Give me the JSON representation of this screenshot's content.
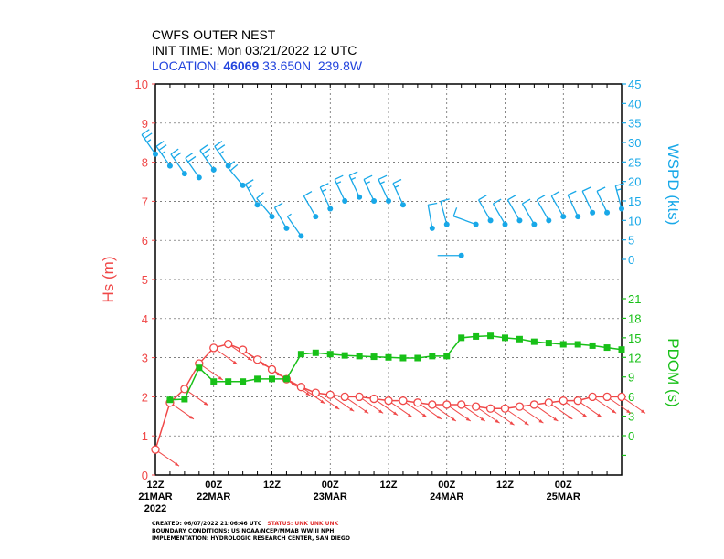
{
  "header": {
    "title": "CWFS OUTER NEST",
    "init_time": "INIT TIME: Mon 03/21/2022 12 UTC",
    "location_label": "LOCATION:",
    "station": "46069",
    "coords": "33.650N  239.8W"
  },
  "footer": {
    "created": "CREATED: 06/07/2022 21:06:46 UTC",
    "status": "STATUS: UNK UNK UNK",
    "boundary": "BOUNDARY CONDITIONS: US NOAA/NCEP/MMAB WWIII NPH",
    "implementation": "IMPLEMENTATION: HYDROLOGIC RESEARCH CENTER, SAN DIEGO"
  },
  "colors": {
    "hs": "#f04848",
    "wspd": "#18a8e8",
    "pdom": "#18c018",
    "frame": "#000000"
  },
  "chart_data": {
    "type": "line",
    "x_hours": [
      0,
      3,
      6,
      9,
      12,
      15,
      18,
      21,
      24,
      27,
      30,
      33,
      36,
      39,
      42,
      45,
      48,
      51,
      54,
      57,
      60,
      63,
      66,
      69,
      72,
      75,
      78,
      81,
      84,
      87,
      90,
      93,
      96
    ],
    "x_ticks": [
      {
        "h": 0,
        "label": "12Z",
        "sub": "21MAR",
        "sub2": "2022"
      },
      {
        "h": 12,
        "label": "00Z",
        "sub": "22MAR"
      },
      {
        "h": 24,
        "label": "12Z"
      },
      {
        "h": 36,
        "label": "00Z",
        "sub": "23MAR"
      },
      {
        "h": 48,
        "label": "12Z"
      },
      {
        "h": 60,
        "label": "00Z",
        "sub": "24MAR"
      },
      {
        "h": 72,
        "label": "12Z"
      },
      {
        "h": 84,
        "label": "00Z",
        "sub": "25MAR"
      }
    ],
    "hs": {
      "axis_label": "Hs (m)",
      "ylim": [
        0,
        10
      ],
      "ticks": [
        0,
        1,
        2,
        3,
        4,
        5,
        6,
        7,
        8,
        9,
        10
      ],
      "values": [
        0.65,
        1.85,
        2.2,
        2.85,
        3.25,
        3.35,
        3.2,
        2.95,
        2.7,
        2.45,
        2.25,
        2.1,
        2.05,
        2.0,
        2.0,
        1.95,
        1.9,
        1.9,
        1.85,
        1.8,
        1.8,
        1.8,
        1.75,
        1.7,
        1.7,
        1.75,
        1.8,
        1.85,
        1.9,
        1.9,
        2.0,
        2.0,
        2.0
      ],
      "dir_deg": [
        335,
        330,
        325,
        325,
        330,
        330,
        330,
        330,
        330,
        325,
        325,
        320,
        320,
        320,
        320,
        320,
        320,
        320,
        320,
        320,
        320,
        320,
        320,
        320,
        320,
        320,
        320,
        320,
        320,
        320,
        320,
        320,
        320
      ]
    },
    "wspd": {
      "axis_label": "WSPD (kts)",
      "ylim": [
        0,
        45
      ],
      "ticks": [
        0,
        5,
        10,
        15,
        20,
        25,
        30,
        35,
        40,
        45
      ],
      "values": [
        27,
        24,
        22,
        21,
        23,
        24,
        19,
        14,
        11,
        8,
        6,
        11,
        13,
        15,
        16,
        15,
        15,
        14,
        null,
        8,
        9,
        1,
        9,
        10,
        9,
        10,
        9,
        10,
        11,
        11,
        12,
        12,
        13
      ],
      "dir_deg": [
        325,
        325,
        325,
        325,
        325,
        325,
        320,
        330,
        320,
        330,
        325,
        330,
        335,
        335,
        335,
        335,
        335,
        335,
        null,
        350,
        345,
        270,
        290,
        330,
        330,
        330,
        330,
        330,
        330,
        335,
        335,
        335,
        345
      ]
    },
    "pdom": {
      "axis_label": "PDOM (s)",
      "ylim": [
        -3,
        21
      ],
      "ticks": [
        0,
        3,
        6,
        9,
        12,
        15,
        18,
        21
      ],
      "values": [
        null,
        5.5,
        5.6,
        10.4,
        8.3,
        8.3,
        8.3,
        8.7,
        8.7,
        8.7,
        12.5,
        12.7,
        12.5,
        12.3,
        12.2,
        12.1,
        12.0,
        11.9,
        11.9,
        12.2,
        12.2,
        15.0,
        15.2,
        15.3,
        15.0,
        14.8,
        14.4,
        14.2,
        14.0,
        14.0,
        13.8,
        13.5,
        13.2
      ]
    }
  }
}
